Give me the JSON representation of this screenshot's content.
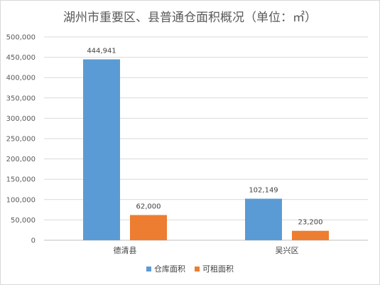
{
  "chart_data": {
    "type": "bar",
    "title": "湖州市重要区、县普通仓面积概况（单位：㎡）",
    "categories": [
      "德清县",
      "吴兴区"
    ],
    "series": [
      {
        "name": "仓库面积",
        "values": [
          444941,
          102149
        ],
        "labels": [
          "444,941",
          "102,149"
        ],
        "color": "#5b9bd5"
      },
      {
        "name": "可租面积",
        "values": [
          62000,
          23200
        ],
        "labels": [
          "62,000",
          "23,200"
        ],
        "color": "#ed7d31"
      }
    ],
    "ylim": [
      0,
      500000
    ],
    "yticks": [
      "0",
      "50,000",
      "100,000",
      "150,000",
      "200,000",
      "250,000",
      "300,000",
      "350,000",
      "400,000",
      "450,000",
      "500,000"
    ],
    "grid": true,
    "legend": "bottom"
  }
}
